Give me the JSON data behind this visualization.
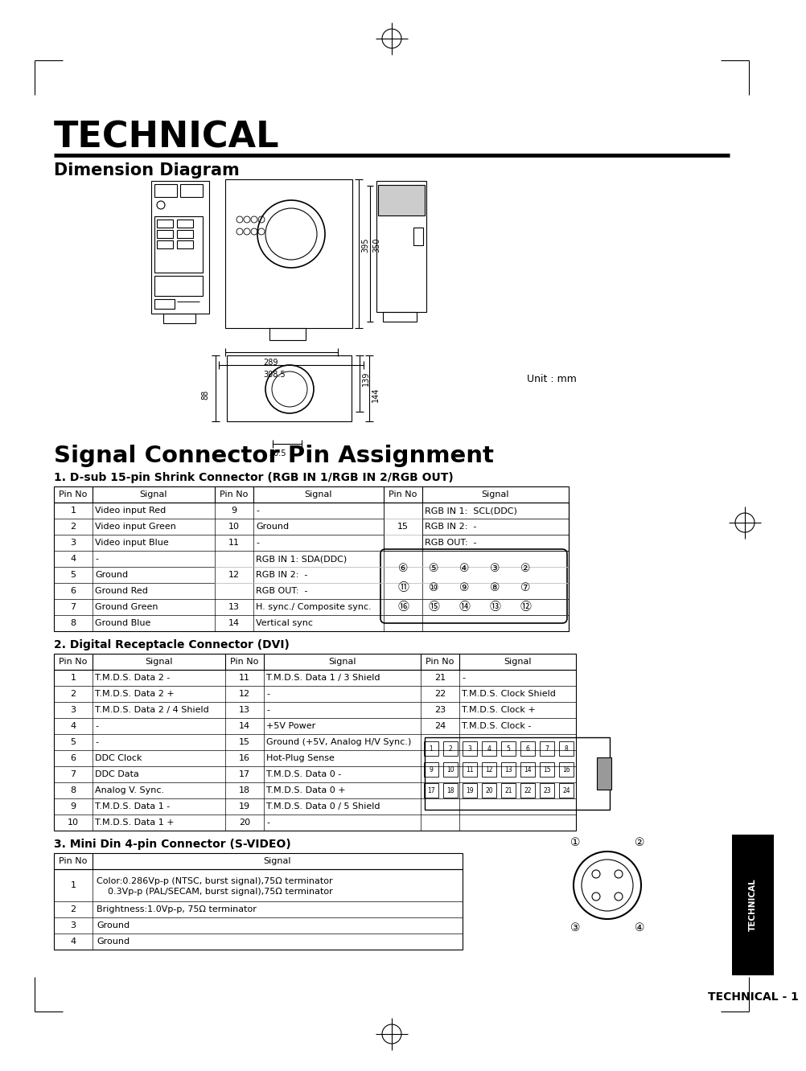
{
  "page_bg": "#ffffff",
  "title_technical": "TECHNICAL",
  "title_dimension": "Dimension Diagram",
  "title_signal": "Signal Connector Pin Assignment",
  "subtitle1": "1. D-sub 15-pin Shrink Connector (RGB IN 1/RGB IN 2/RGB OUT)",
  "subtitle2": "2. Digital Receptacle Connector (DVI)",
  "subtitle3": "3. Mini Din 4-pin Connector (S-VIDEO)",
  "unit_label": "Unit : mm",
  "technical_footer": "TECHNICAL - 1",
  "table1_headers": [
    "Pin No",
    "Signal",
    "Pin No",
    "Signal",
    "Pin No",
    "Signal"
  ],
  "table1_col1": [
    [
      "1",
      "Video input Red"
    ],
    [
      "2",
      "Video input Green"
    ],
    [
      "3",
      "Video input Blue"
    ],
    [
      "4",
      "-"
    ],
    [
      "5",
      "Ground"
    ],
    [
      "6",
      "Ground Red"
    ],
    [
      "7",
      "Ground Green"
    ],
    [
      "8",
      "Ground Blue"
    ]
  ],
  "table1_col2": [
    [
      "9",
      "-"
    ],
    [
      "10",
      "Ground"
    ],
    [
      "11",
      "-"
    ],
    [
      "",
      "RGB IN 1: SDA(DDC)"
    ],
    [
      "12",
      "RGB IN 2:  -"
    ],
    [
      "",
      "RGB OUT:  -"
    ],
    [
      "13",
      "H. sync./ Composite sync."
    ],
    [
      "14",
      "Vertical sync"
    ]
  ],
  "table1_col3_pin": "15",
  "table1_col3_signals": [
    "RGB IN 1:  SCL(DDC)",
    "RGB IN 2:  -",
    "RGB OUT:  -"
  ],
  "table2_headers": [
    "Pin No",
    "Signal",
    "Pin No",
    "Signal",
    "Pin No",
    "Signal"
  ],
  "table2_rows": [
    [
      "1",
      "T.M.D.S. Data 2 -",
      "11",
      "T.M.D.S. Data 1 / 3 Shield",
      "21",
      "-"
    ],
    [
      "2",
      "T.M.D.S. Data 2 +",
      "12",
      "-",
      "22",
      "T.M.D.S. Clock Shield"
    ],
    [
      "3",
      "T.M.D.S. Data 2 / 4 Shield",
      "13",
      "-",
      "23",
      "T.M.D.S. Clock +"
    ],
    [
      "4",
      "-",
      "14",
      "+5V Power",
      "24",
      "T.M.D.S. Clock -"
    ],
    [
      "5",
      "-",
      "15",
      "Ground (+5V, Analog H/V Sync.)",
      "",
      ""
    ],
    [
      "6",
      "DDC Clock",
      "16",
      "Hot-Plug Sense",
      "",
      ""
    ],
    [
      "7",
      "DDC Data",
      "17",
      "T.M.D.S. Data 0 -",
      "",
      ""
    ],
    [
      "8",
      "Analog V. Sync.",
      "18",
      "T.M.D.S. Data 0 +",
      "",
      ""
    ],
    [
      "9",
      "T.M.D.S. Data 1 -",
      "19",
      "T.M.D.S. Data 0 / 5 Shield",
      "",
      ""
    ],
    [
      "10",
      "T.M.D.S. Data 1 +",
      "20",
      "-",
      "",
      ""
    ]
  ],
  "table3_rows": [
    [
      "1",
      "Color:0.286Vp-p (NTSC, burst signal),75Ω terminator",
      "    0.3Vp-p (PAL/SECAM, burst signal),75Ω terminator"
    ],
    [
      "2",
      "Brightness:1.0Vp-p, 75Ω terminator",
      ""
    ],
    [
      "3",
      "Ground",
      ""
    ],
    [
      "4",
      "Ground",
      ""
    ]
  ]
}
